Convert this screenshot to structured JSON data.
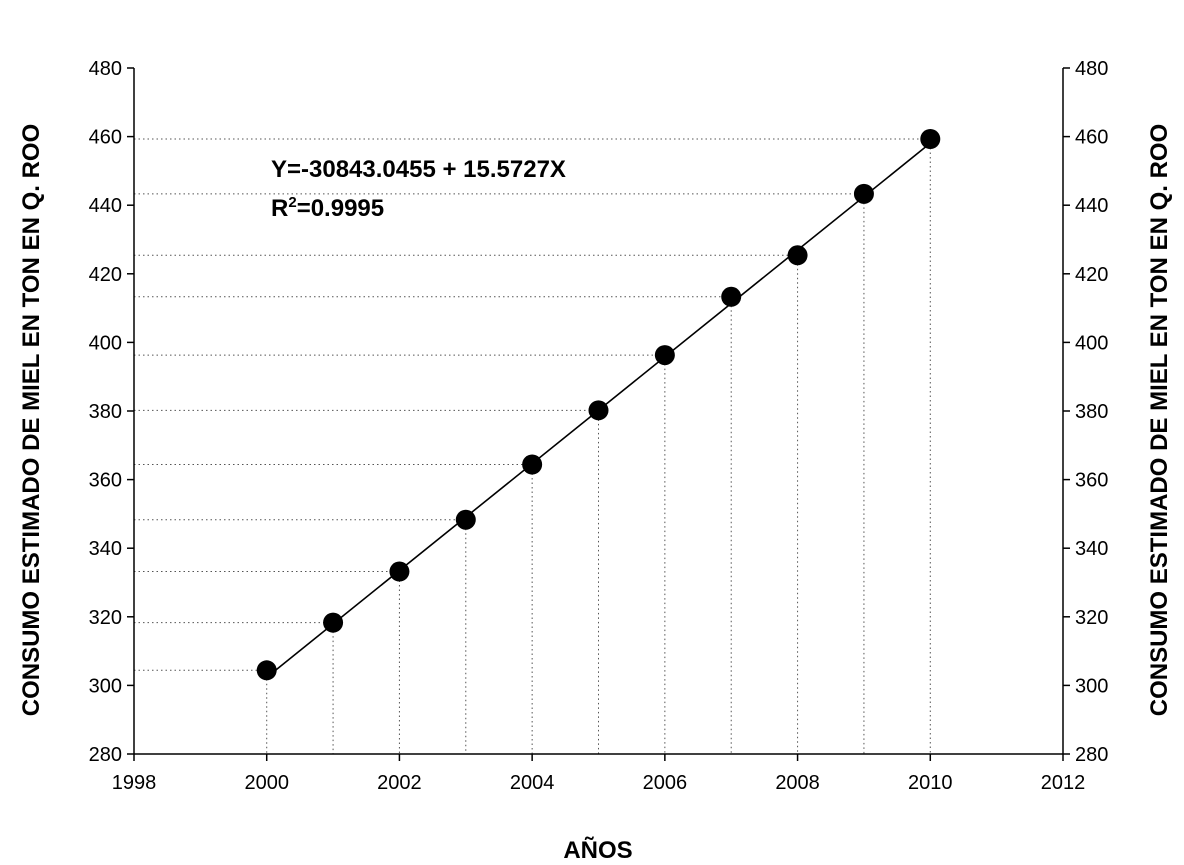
{
  "chart_data": {
    "type": "scatter",
    "title": "",
    "xlabel": "AÑOS",
    "ylabel": "CONSUMO ESTIMADO DE MIEL EN TON EN Q. ROO",
    "ylabel_right": "CONSUMO ESTIMADO DE MIEL EN TON EN Q. ROO",
    "xlim": [
      1998,
      2012
    ],
    "ylim": [
      280,
      480
    ],
    "xticks": [
      "1998",
      "2000",
      "2002",
      "2004",
      "2006",
      "2008",
      "2010",
      "2012"
    ],
    "yticks": [
      "280",
      "300",
      "320",
      "340",
      "360",
      "380",
      "400",
      "420",
      "440",
      "460",
      "480"
    ],
    "series": [
      {
        "x": [
          2000,
          2001,
          2002,
          2003,
          2004,
          2005,
          2006,
          2007,
          2008,
          2009,
          2010
        ],
        "y": [
          304.4,
          318.3,
          333.2,
          348.3,
          364.4,
          380.2,
          396.3,
          413.3,
          425.4,
          443.3,
          459.3
        ]
      }
    ],
    "trendline": {
      "intercept": -30843.0455,
      "slope": 15.5727
    },
    "annotation": {
      "equation": "Y=-30843.0455 + 15.5727X",
      "r2_prefix": "R",
      "r2_sup": "2",
      "r2_value": "=0.9995"
    },
    "grid": "dotted drop lines from each point to both axes",
    "marker_color": "#000000",
    "line_color": "#000000"
  }
}
